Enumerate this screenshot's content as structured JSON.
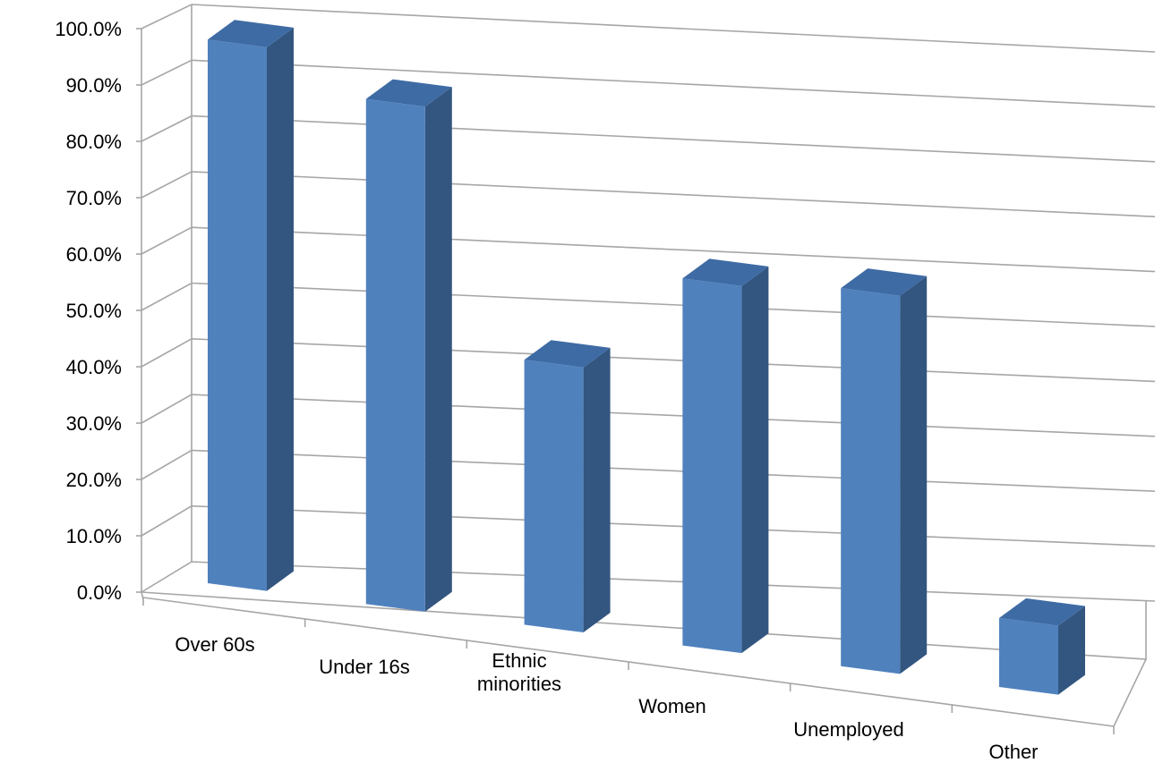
{
  "chart_data": {
    "type": "bar",
    "title": "",
    "xlabel": "",
    "ylabel": "",
    "categories": [
      [
        "Over 60s"
      ],
      [
        "Under 16s"
      ],
      [
        "Ethnic",
        "minorities"
      ],
      [
        "Women"
      ],
      [
        "Unemployed"
      ],
      [
        "Other"
      ]
    ],
    "values": [
      98.5,
      91.5,
      48.0,
      66.5,
      68.5,
      12.5
    ],
    "ylim": [
      0,
      100
    ],
    "yticks": [
      "0.0%",
      "10.0%",
      "20.0%",
      "30.0%",
      "40.0%",
      "50.0%",
      "60.0%",
      "70.0%",
      "80.0%",
      "90.0%",
      "100.0%"
    ],
    "grid": true,
    "legend": "none",
    "colors": {
      "bar_front": "#4F81BD",
      "bar_side": "#335680",
      "bar_top": "#3E6BA4",
      "grid": "#A6A6A6",
      "axis": "#A6A6A6"
    }
  }
}
